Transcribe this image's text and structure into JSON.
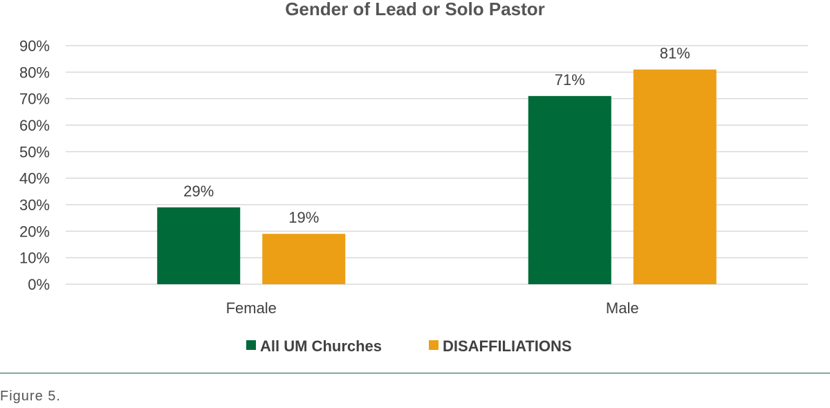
{
  "chart_data": {
    "type": "bar",
    "title": "Gender of Lead or Solo Pastor",
    "categories": [
      "Female",
      "Male"
    ],
    "series": [
      {
        "name": "All UM Churches",
        "values": [
          29,
          71
        ],
        "labels": [
          "29%",
          "71%"
        ],
        "color": "#006a39"
      },
      {
        "name": "DISAFFILIATIONS",
        "values": [
          19,
          81
        ],
        "labels": [
          "19%",
          "81%"
        ],
        "color": "#ec9f14"
      }
    ],
    "ylim": [
      0,
      90
    ],
    "yticks": [
      0,
      10,
      20,
      30,
      40,
      50,
      60,
      70,
      80,
      90
    ],
    "ytick_labels": [
      "0%",
      "10%",
      "20%",
      "30%",
      "40%",
      "50%",
      "60%",
      "70%",
      "80%",
      "90%"
    ],
    "xlabel": "",
    "ylabel": "",
    "grid": true,
    "legend_position": "bottom"
  },
  "figure_caption": "Figure 5."
}
